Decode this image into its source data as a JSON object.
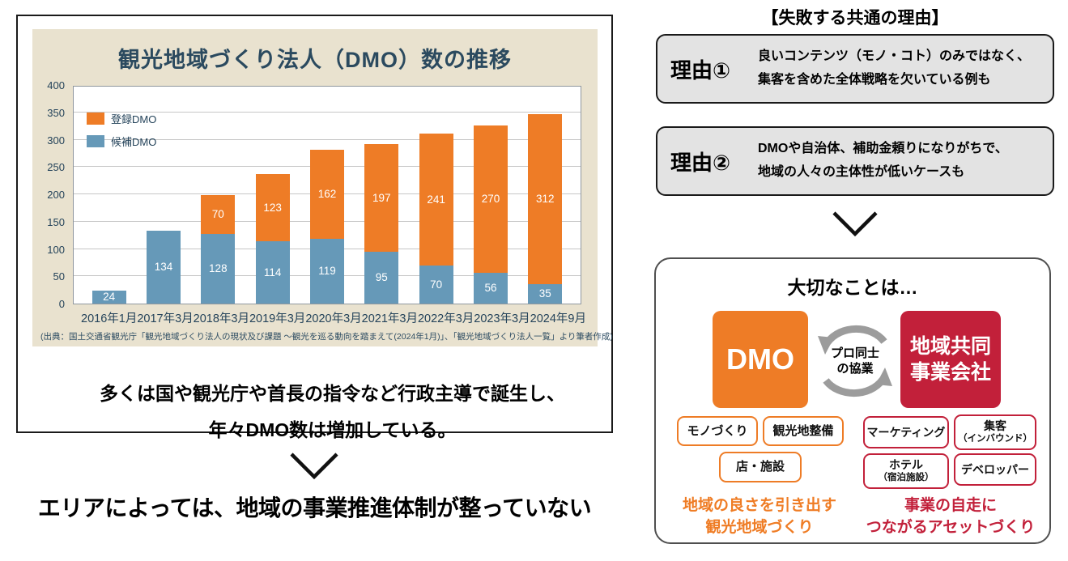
{
  "left_panel": {
    "caption_line1": "多くは国や観光庁や首長の指令など行政主導で誕生し、",
    "caption_line2": "年々DMO数は増加している。",
    "conclusion": "エリアによっては、地域の事業推進体制が整っていない"
  },
  "chart_data": {
    "type": "bar",
    "stacked": true,
    "title": "観光地域づくり法人（DMO）数の推移",
    "categories": [
      "2016年1月",
      "2017年3月",
      "2018年3月",
      "2019年3月",
      "2020年3月",
      "2021年3月",
      "2022年3月",
      "2023年3月",
      "2024年9月"
    ],
    "series": [
      {
        "name": "候補DMO",
        "color": "#6699b8",
        "values": [
          24,
          134,
          128,
          114,
          119,
          95,
          70,
          56,
          35
        ]
      },
      {
        "name": "登録DMO",
        "color": "#ee7c26",
        "values": [
          0,
          0,
          70,
          123,
          162,
          197,
          241,
          270,
          312
        ]
      }
    ],
    "ylim": [
      0,
      400
    ],
    "ytick_step": 50,
    "grid": true,
    "legend_position": "upper-left",
    "source": "(出典：国土交通省観光庁「観光地域づくり法人の現状及び課題 ～観光を巡る動向を踏まえて(2024年1月)」、「観光地域づくり法人一覧」より筆者作成)"
  },
  "right_panel": {
    "header": "【失敗する共通の理由】",
    "reasons": [
      {
        "label": "理由①",
        "line1": "良いコンテンツ（モノ・コト）のみではなく、",
        "line2": "集客を含めた全体戦略を欠いている例も"
      },
      {
        "label": "理由②",
        "line1": "DMOや自治体、補助金頼りになりがちで、",
        "line2": "地域の人々の主体性が低いケースも"
      }
    ],
    "important": {
      "title": "大切なことは…",
      "dmo_label": "DMO",
      "collab_line1": "プロ同士",
      "collab_line2": "の協業",
      "company_line1": "地域共同",
      "company_line2": "事業会社",
      "chip_monozukuri": "モノづくり",
      "chip_kankochi_seibi": "観光地整備",
      "chip_mise_shisetsu": "店・施設",
      "chip_marketing": "マーケティング",
      "chip_shukyaku_line1": "集客",
      "chip_shukyaku_line2": "（インバウンド）",
      "chip_hotel_line1": "ホテル",
      "chip_hotel_line2": "（宿泊施設）",
      "chip_developer": "デベロッパー",
      "left_caption_line1": "地域の良さを引き出す",
      "left_caption_line2": "観光地域づくり",
      "right_caption_line1": "事業の自走に",
      "right_caption_line2": "つながるアセットづくり"
    }
  },
  "colors": {
    "orange": "#ee7c26",
    "blue": "#6699b8",
    "crimson": "#c2203a",
    "beige": "#e9e2cf",
    "navy": "#2b4a5f",
    "gray_box": "#e3e3e3",
    "arrow_gray": "#9c9c9c"
  }
}
